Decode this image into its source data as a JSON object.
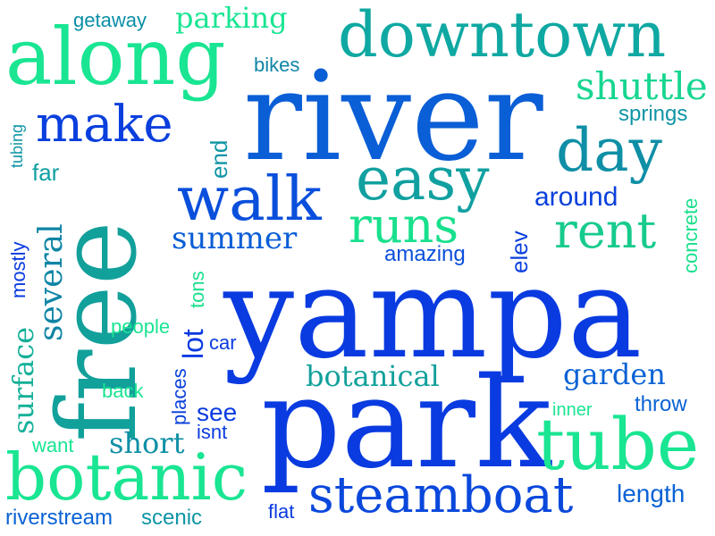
{
  "words": [
    {
      "text": "yampa",
      "color": "#0a3be0"
    },
    {
      "text": "river",
      "color": "#0a5ed6"
    },
    {
      "text": "park",
      "color": "#0a3be0"
    },
    {
      "text": "free",
      "color": "#12a09b"
    },
    {
      "text": "along",
      "color": "#19e592"
    },
    {
      "text": "downtown",
      "color": "#0fa8a2"
    },
    {
      "text": "tube",
      "color": "#19e592"
    },
    {
      "text": "botanic",
      "color": "#19e592"
    },
    {
      "text": "steamboat",
      "color": "#0a48dc"
    },
    {
      "text": "make",
      "color": "#0a3fde"
    },
    {
      "text": "walk",
      "color": "#0a4fdc"
    },
    {
      "text": "easy",
      "color": "#11a0a0"
    },
    {
      "text": "day",
      "color": "#0f8fa6"
    },
    {
      "text": "runs",
      "color": "#19e08d"
    },
    {
      "text": "rent",
      "color": "#17cb8c"
    },
    {
      "text": "shuttle",
      "color": "#17d690"
    },
    {
      "text": "summer",
      "color": "#0a5ed6"
    },
    {
      "text": "several",
      "color": "#0f85a5"
    },
    {
      "text": "surface",
      "color": "#14b098"
    },
    {
      "text": "botanical",
      "color": "#12a09b"
    },
    {
      "text": "garden",
      "color": "#0a62d5"
    },
    {
      "text": "short",
      "color": "#0f8fa6"
    },
    {
      "text": "parking",
      "color": "#19e592"
    },
    {
      "text": "getaway",
      "color": "#0a8fa6"
    },
    {
      "text": "springs",
      "color": "#0f95a5"
    },
    {
      "text": "around",
      "color": "#0a40dc"
    },
    {
      "text": "concrete",
      "color": "#19e08d"
    },
    {
      "text": "elev",
      "color": "#0a3fde"
    },
    {
      "text": "amazing",
      "color": "#0a4fdc"
    },
    {
      "text": "bikes",
      "color": "#0f85a5"
    },
    {
      "text": "end",
      "color": "#0f95a5"
    },
    {
      "text": "far",
      "color": "#11a0a0"
    },
    {
      "text": "tubing",
      "color": "#0f95a5"
    },
    {
      "text": "mostly",
      "color": "#0a3be0"
    },
    {
      "text": "tons",
      "color": "#19e08d"
    },
    {
      "text": "lot",
      "color": "#0a3be0"
    },
    {
      "text": "people",
      "color": "#19e592"
    },
    {
      "text": "car",
      "color": "#0a3be0"
    },
    {
      "text": "back",
      "color": "#19e592"
    },
    {
      "text": "places",
      "color": "#0a40dc"
    },
    {
      "text": "see",
      "color": "#0a3be0"
    },
    {
      "text": "isnt",
      "color": "#0a3be0"
    },
    {
      "text": "inner",
      "color": "#19e592"
    },
    {
      "text": "throw",
      "color": "#0a62d5"
    },
    {
      "text": "want",
      "color": "#19e592"
    },
    {
      "text": "length",
      "color": "#0a62d5"
    },
    {
      "text": "flat",
      "color": "#0a3be0"
    },
    {
      "text": "riverstream",
      "color": "#0a62d5"
    },
    {
      "text": "scenic",
      "color": "#0f95a5"
    }
  ]
}
